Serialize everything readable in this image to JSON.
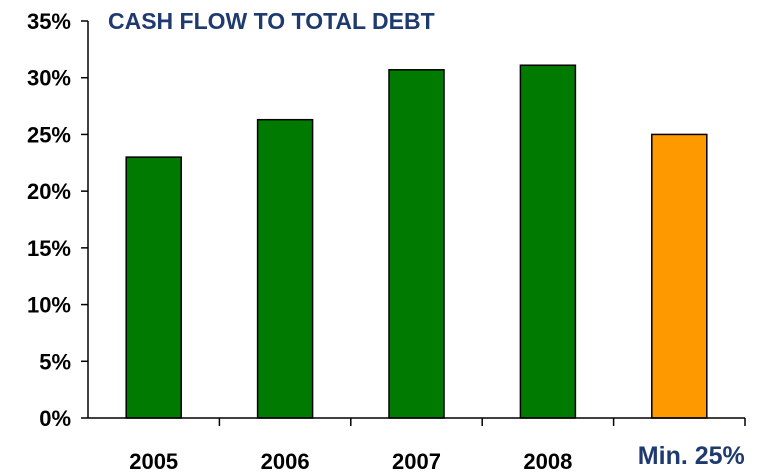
{
  "chart_data": {
    "type": "bar",
    "title": "CASH FLOW TO TOTAL DEBT",
    "xlabel": "",
    "ylabel": "",
    "categories": [
      "2005",
      "2006",
      "2007",
      "2008",
      "Min. 25%"
    ],
    "values": [
      23.0,
      26.3,
      30.7,
      31.1,
      25.0
    ],
    "bar_colors": [
      "#007a00",
      "#007a00",
      "#007a00",
      "#007a00",
      "#ff9900"
    ],
    "ylim": [
      0,
      35
    ],
    "y_ticks": [
      "0%",
      "5%",
      "10%",
      "15%",
      "20%",
      "25%",
      "30%",
      "35%"
    ],
    "y_tick_values": [
      0,
      5,
      10,
      15,
      20,
      25,
      30,
      35
    ],
    "grid": false,
    "legend": "none"
  }
}
